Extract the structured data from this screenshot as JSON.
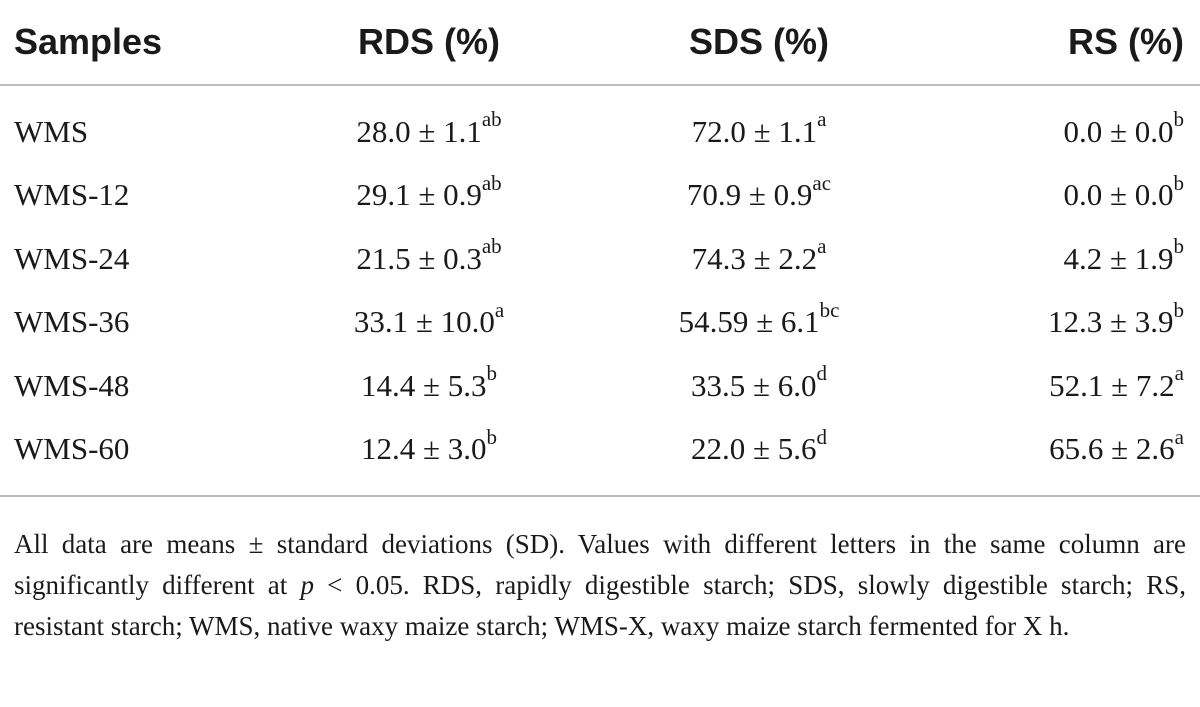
{
  "table": {
    "headers": [
      "Samples",
      "RDS (%)",
      "SDS (%)",
      "RS (%)"
    ],
    "rows": [
      {
        "sample": "WMS",
        "rds": "28.0 ± 1.1",
        "rds_sup": "ab",
        "sds": "72.0 ± 1.1",
        "sds_sup": "a",
        "rs": "0.0 ± 0.0",
        "rs_sup": "b"
      },
      {
        "sample": "WMS-12",
        "rds": "29.1 ± 0.9",
        "rds_sup": "ab",
        "sds": "70.9 ± 0.9",
        "sds_sup": "ac",
        "rs": "0.0 ± 0.0",
        "rs_sup": "b"
      },
      {
        "sample": "WMS-24",
        "rds": "21.5 ± 0.3",
        "rds_sup": "ab",
        "sds": "74.3 ± 2.2",
        "sds_sup": "a",
        "rs": "4.2 ± 1.9",
        "rs_sup": "b"
      },
      {
        "sample": "WMS-36",
        "rds": "33.1 ± 10.0",
        "rds_sup": "a",
        "sds": "54.59 ± 6.1",
        "sds_sup": "bc",
        "rs": "12.3 ± 3.9",
        "rs_sup": "b"
      },
      {
        "sample": "WMS-48",
        "rds": "14.4 ± 5.3",
        "rds_sup": "b",
        "sds": "33.5 ± 6.0",
        "sds_sup": "d",
        "rs": "52.1 ± 7.2",
        "rs_sup": "a"
      },
      {
        "sample": "WMS-60",
        "rds": "12.4 ± 3.0",
        "rds_sup": "b",
        "sds": "22.0 ± 5.6",
        "sds_sup": "d",
        "rs": "65.6 ± 2.6",
        "rs_sup": "a"
      }
    ]
  },
  "footnote": {
    "before_p": "All data are means ± standard deviations (SD). Values with different letters in the same column are significantly different at ",
    "p_symbol": "p",
    "after_p": " < 0.05. RDS, rapidly digestible starch; SDS, slowly digestible starch; RS, resistant starch; WMS, native waxy maize starch; WMS-X, waxy maize starch fermented for X h."
  }
}
